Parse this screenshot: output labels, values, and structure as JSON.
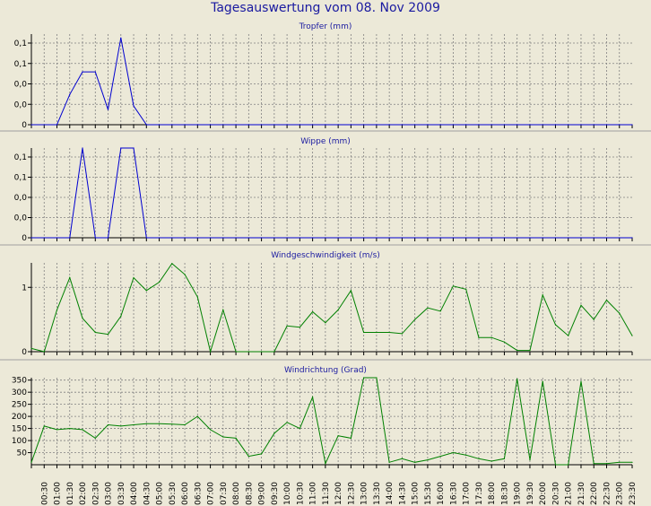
{
  "page_title": "Tagesauswertung vom 08. Nov 2009",
  "chart_data": [
    {
      "type": "line",
      "title": "Tropfer (mm)",
      "color": "#0000d0",
      "yticks": [
        "0,1",
        "0,1",
        "0,0",
        "0,0",
        "0"
      ],
      "ylim": [
        0,
        0.12
      ],
      "x": [
        "00:00",
        "00:30",
        "01:00",
        "01:30",
        "02:00",
        "02:30",
        "03:00",
        "03:30",
        "04:00",
        "04:30",
        "05:00",
        "05:30",
        "06:00",
        "06:30",
        "07:00",
        "07:30",
        "08:00",
        "08:30",
        "09:00",
        "09:30",
        "10:00",
        "10:30",
        "11:00",
        "11:30",
        "12:00",
        "12:30",
        "13:00",
        "13:30",
        "14:00",
        "14:30",
        "15:00",
        "15:30",
        "16:00",
        "16:30",
        "17:00",
        "17:30",
        "18:00",
        "18:30",
        "19:00",
        "19:30",
        "20:00",
        "20:30",
        "21:00",
        "21:30",
        "22:00",
        "22:30",
        "23:00",
        "23:30"
      ],
      "values": [
        0,
        0,
        0,
        0.04,
        0.07,
        0.07,
        0.02,
        0.115,
        0.025,
        0,
        0,
        0,
        0,
        0,
        0,
        0,
        0,
        0,
        0,
        0,
        0,
        0,
        0,
        0,
        0,
        0,
        0,
        0,
        0,
        0,
        0,
        0,
        0,
        0,
        0,
        0,
        0,
        0,
        0,
        0,
        0,
        0,
        0,
        0,
        0,
        0,
        0,
        0
      ]
    },
    {
      "type": "line",
      "title": "Wippe (mm)",
      "color": "#0000d0",
      "yticks": [
        "0,1",
        "0,1",
        "0,0",
        "0,0",
        "0"
      ],
      "ylim": [
        0,
        0.12
      ],
      "x": [
        "00:00",
        "00:30",
        "01:00",
        "01:30",
        "02:00",
        "02:30",
        "03:00",
        "03:30",
        "04:00",
        "04:30",
        "05:00",
        "05:30",
        "06:00",
        "06:30",
        "07:00",
        "07:30",
        "08:00",
        "08:30",
        "09:00",
        "09:30",
        "10:00",
        "10:30",
        "11:00",
        "11:30",
        "12:00",
        "12:30",
        "13:00",
        "13:30",
        "14:00",
        "14:30",
        "15:00",
        "15:30",
        "16:00",
        "16:30",
        "17:00",
        "17:30",
        "18:00",
        "18:30",
        "19:00",
        "19:30",
        "20:00",
        "20:30",
        "21:00",
        "21:30",
        "22:00",
        "22:30",
        "23:00",
        "23:30"
      ],
      "values": [
        0,
        0,
        0,
        0,
        0.12,
        0,
        0,
        0.15,
        0.15,
        0,
        0,
        0,
        0,
        0,
        0,
        0,
        0,
        0,
        0,
        0,
        0,
        0,
        0,
        0,
        0,
        0,
        0,
        0,
        0,
        0,
        0,
        0,
        0,
        0,
        0,
        0,
        0,
        0,
        0,
        0,
        0,
        0,
        0,
        0,
        0,
        0,
        0,
        0
      ]
    },
    {
      "type": "line",
      "title": "Windgeschwindigkeit (m/s)",
      "color": "#008000",
      "yticks": [
        "1",
        "0"
      ],
      "ylim": [
        0,
        1.38
      ],
      "x": [
        "00:00",
        "00:30",
        "01:00",
        "01:30",
        "02:00",
        "02:30",
        "03:00",
        "03:30",
        "04:00",
        "04:30",
        "05:00",
        "05:30",
        "06:00",
        "06:30",
        "07:00",
        "07:30",
        "08:00",
        "08:30",
        "09:00",
        "09:30",
        "10:00",
        "10:30",
        "11:00",
        "11:30",
        "12:00",
        "12:30",
        "13:00",
        "13:30",
        "14:00",
        "14:30",
        "15:00",
        "15:30",
        "16:00",
        "16:30",
        "17:00",
        "17:30",
        "18:00",
        "18:30",
        "19:00",
        "19:30",
        "20:00",
        "20:30",
        "21:00",
        "21:30",
        "22:00",
        "22:30",
        "23:00",
        "23:30"
      ],
      "values": [
        0.05,
        0,
        0.65,
        1.15,
        0.52,
        0.3,
        0.27,
        0.55,
        1.15,
        0.95,
        1.08,
        1.37,
        1.2,
        0.85,
        0,
        0.65,
        0,
        0,
        0,
        0,
        0.4,
        0.38,
        0.62,
        0.45,
        0.65,
        0.95,
        0.3,
        0.3,
        0.3,
        0.28,
        0.5,
        0.68,
        0.63,
        1.02,
        0.97,
        0.22,
        0.22,
        0.15,
        0.02,
        0.02,
        0.88,
        0.42,
        0.25,
        0.72,
        0.5,
        0.8,
        0.6,
        0.25
      ]
    },
    {
      "type": "line",
      "title": "Windrichtung (Grad)",
      "color": "#008000",
      "yticks": [
        "350",
        "300",
        "250",
        "200",
        "150",
        "100",
        "50"
      ],
      "ylim": [
        0,
        360
      ],
      "x": [
        "00:00",
        "00:30",
        "01:00",
        "01:30",
        "02:00",
        "02:30",
        "03:00",
        "03:30",
        "04:00",
        "04:30",
        "05:00",
        "05:30",
        "06:00",
        "06:30",
        "07:00",
        "07:30",
        "08:00",
        "08:30",
        "09:00",
        "09:30",
        "10:00",
        "10:30",
        "11:00",
        "11:30",
        "12:00",
        "12:30",
        "13:00",
        "13:30",
        "14:00",
        "14:30",
        "15:00",
        "15:30",
        "16:00",
        "16:30",
        "17:00",
        "17:30",
        "18:00",
        "18:30",
        "19:00",
        "19:30",
        "20:00",
        "20:30",
        "21:00",
        "21:30",
        "22:00",
        "22:30",
        "23:00",
        "23:30"
      ],
      "values": [
        10,
        160,
        145,
        150,
        145,
        110,
        165,
        160,
        165,
        170,
        170,
        168,
        165,
        200,
        145,
        115,
        110,
        35,
        45,
        130,
        175,
        150,
        280,
        5,
        120,
        110,
        360,
        360,
        10,
        25,
        10,
        20,
        35,
        50,
        40,
        25,
        15,
        25,
        355,
        20,
        345,
        0,
        0,
        345,
        5,
        5,
        10,
        10
      ],
      "xtick_labels": [
        "00:30",
        "01:00",
        "01:30",
        "02:00",
        "02:30",
        "03:00",
        "03:30",
        "04:00",
        "04:30",
        "05:00",
        "05:30",
        "06:00",
        "06:30",
        "07:00",
        "07:30",
        "08:00",
        "08:30",
        "09:00",
        "09:30",
        "10:00",
        "10:30",
        "11:00",
        "11:30",
        "12:00",
        "12:30",
        "13:00",
        "13:30",
        "14:00",
        "14:30",
        "15:00",
        "15:30",
        "16:00",
        "16:30",
        "17:00",
        "17:30",
        "18:00",
        "18:30",
        "19:00",
        "19:30",
        "20:00",
        "20:30",
        "21:00",
        "21:30",
        "22:00",
        "22:30",
        "23:00",
        "23:30"
      ]
    }
  ]
}
